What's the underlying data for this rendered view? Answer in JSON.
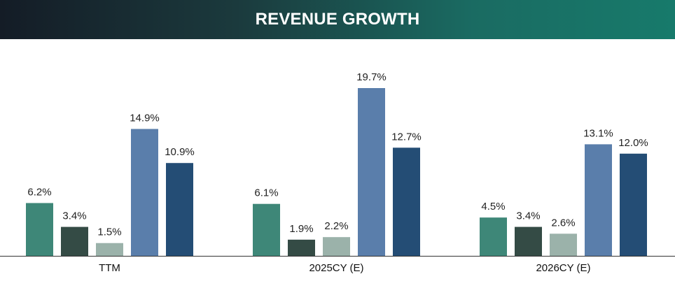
{
  "header": {
    "title": "REVENUE GROWTH"
  },
  "chart_data": {
    "type": "bar",
    "title": "REVENUE GROWTH",
    "categories": [
      "TTM",
      "2025CY (E)",
      "2026CY (E)"
    ],
    "series": [
      {
        "name": "Series 1",
        "values": [
          6.2,
          6.1,
          4.5
        ],
        "color": "#3e8778"
      },
      {
        "name": "Series 2",
        "values": [
          3.4,
          1.9,
          3.4
        ],
        "color": "#344b45"
      },
      {
        "name": "Series 3",
        "values": [
          1.5,
          2.2,
          2.6
        ],
        "color": "#9bb2aa"
      },
      {
        "name": "Series 4",
        "values": [
          14.9,
          19.7,
          13.1
        ],
        "color": "#5a7eab"
      },
      {
        "name": "Series 5",
        "values": [
          10.9,
          12.7,
          12.0
        ],
        "color": "#244d75"
      }
    ],
    "value_labels": [
      [
        "6.2%",
        "6.1%",
        "4.5%"
      ],
      [
        "3.4%",
        "1.9%",
        "3.4%"
      ],
      [
        "1.5%",
        "2.2%",
        "2.6%"
      ],
      [
        "14.9%",
        "19.7%",
        "13.1%"
      ],
      [
        "10.9%",
        "12.7%",
        "12.0%"
      ]
    ],
    "xlabel": "",
    "ylabel": "",
    "ylim": [
      0,
      19.7
    ],
    "grid": false,
    "legend": "none"
  }
}
